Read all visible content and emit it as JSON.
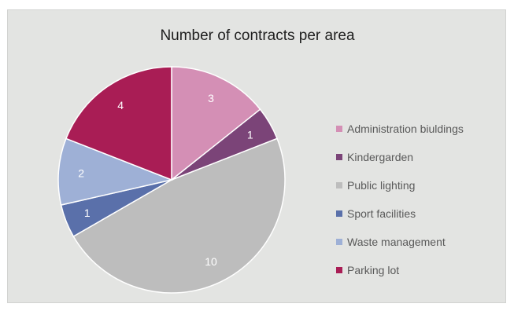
{
  "chart_data": {
    "type": "pie",
    "title": "Number of contracts per area",
    "categories": [
      "Administration biuldings",
      "Kindergarden",
      "Public lighting",
      "Sport facilities",
      "Waste management",
      "Parking lot"
    ],
    "values": [
      3,
      1,
      10,
      1,
      2,
      4
    ],
    "colors": [
      "#d48fb5",
      "#7b4478",
      "#bdbdbd",
      "#5a70aa",
      "#9eb0d6",
      "#a91d55"
    ],
    "legend_position": "right",
    "data_labels": true
  }
}
